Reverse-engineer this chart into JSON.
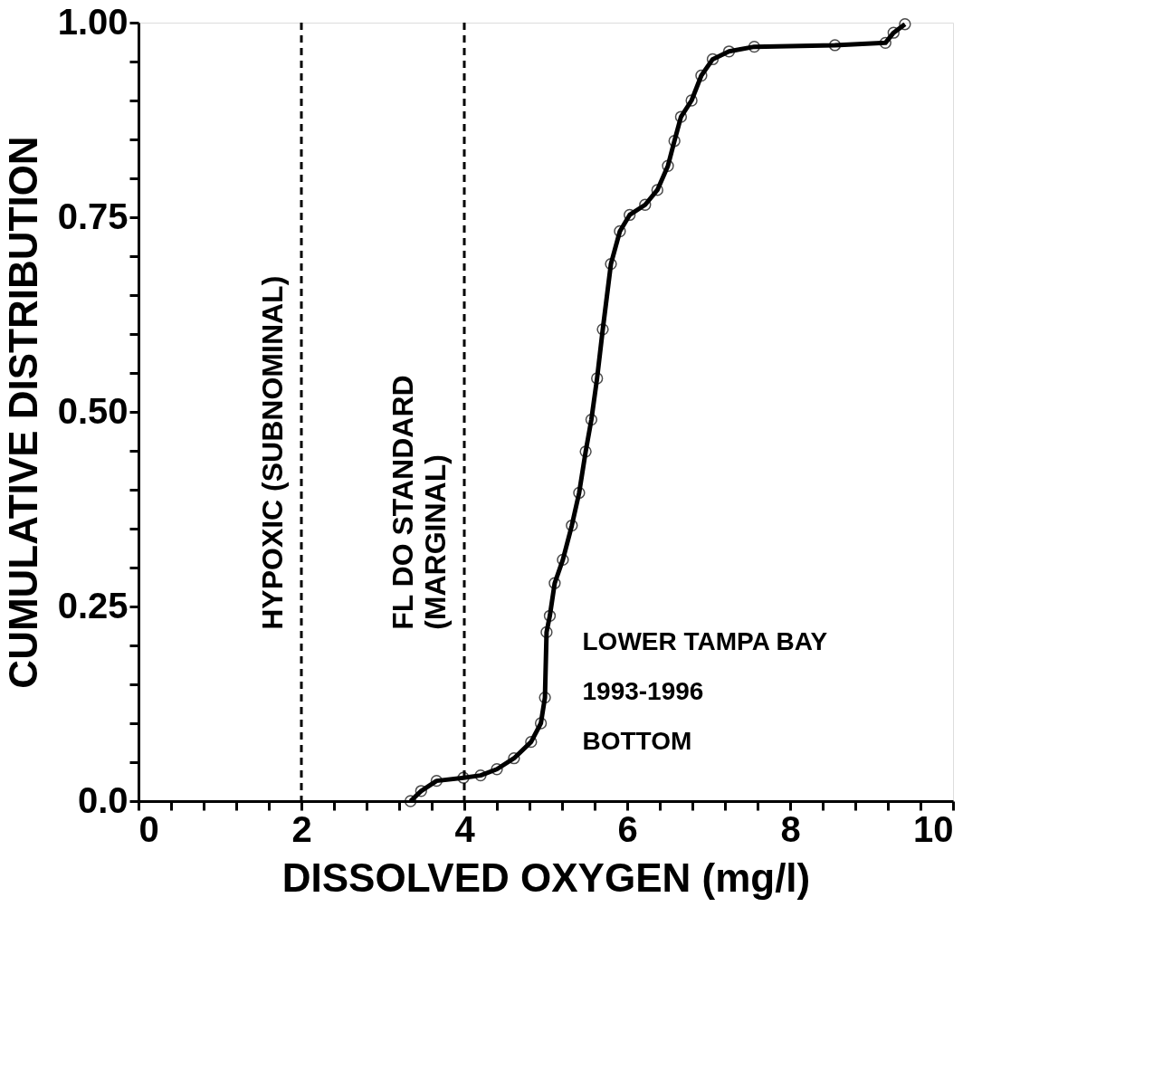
{
  "chart_data": {
    "type": "line",
    "xlabel": "DISSOLVED OXYGEN (mg/l)",
    "ylabel": "CUMULATIVE DISTRIBUTION",
    "xlim": [
      0,
      10
    ],
    "ylim": [
      0,
      1
    ],
    "xticks": [
      0,
      {
        "value": 0.4,
        "label": null
      },
      {
        "value": 0.8,
        "label": null
      },
      {
        "value": 1.2,
        "label": null
      },
      {
        "value": 1.6,
        "label": null
      },
      2,
      {
        "value": 2.4,
        "label": null
      },
      {
        "value": 2.8,
        "label": null
      },
      {
        "value": 3.2,
        "label": null
      },
      {
        "value": 3.6,
        "label": null
      },
      4,
      {
        "value": 4.4,
        "label": null
      },
      {
        "value": 4.8,
        "label": null
      },
      {
        "value": 5.2,
        "label": null
      },
      {
        "value": 5.6,
        "label": null
      },
      6,
      {
        "value": 6.4,
        "label": null
      },
      {
        "value": 6.8,
        "label": null
      },
      {
        "value": 7.2,
        "label": null
      },
      {
        "value": 7.6,
        "label": null
      },
      8,
      {
        "value": 8.4,
        "label": null
      },
      {
        "value": 8.8,
        "label": null
      },
      {
        "value": 9.2,
        "label": null
      },
      {
        "value": 9.6,
        "label": null
      },
      10
    ],
    "yticks": [
      {
        "value": 0,
        "label": "0.0"
      },
      {
        "value": 0.05,
        "label": null
      },
      {
        "value": 0.1,
        "label": null
      },
      {
        "value": 0.15,
        "label": null
      },
      {
        "value": 0.2,
        "label": null
      },
      0.25,
      {
        "value": 0.3,
        "label": null
      },
      {
        "value": 0.35,
        "label": null
      },
      {
        "value": 0.4,
        "label": null
      },
      {
        "value": 0.45,
        "label": null
      },
      {
        "value": 0.5,
        "label": "0.50"
      },
      {
        "value": 0.55,
        "label": null
      },
      {
        "value": 0.6,
        "label": null
      },
      {
        "value": 0.65,
        "label": null
      },
      {
        "value": 0.7,
        "label": null
      },
      0.75,
      {
        "value": 0.8,
        "label": null
      },
      {
        "value": 0.85,
        "label": null
      },
      {
        "value": 0.9,
        "label": null
      },
      {
        "value": 0.95,
        "label": null
      },
      {
        "value": 1,
        "label": "1.00"
      }
    ],
    "grid": false,
    "marker": "circle",
    "line_style": "solid",
    "series": [
      {
        "color": "#000000",
        "x": [
          3.34,
          3.47,
          3.66,
          3.99,
          4.2,
          4.4,
          4.61,
          4.82,
          4.94,
          4.99,
          5.01,
          5.05,
          5.11,
          5.21,
          5.32,
          5.41,
          5.49,
          5.56,
          5.63,
          5.7,
          5.8,
          5.91,
          6.03,
          6.22,
          6.37,
          6.5,
          6.58,
          6.66,
          6.79,
          6.91,
          7.05,
          7.25,
          7.56,
          8.55,
          9.17,
          9.27,
          9.41
        ],
        "values": [
          0.0,
          0.013,
          0.026,
          0.03,
          0.033,
          0.041,
          0.055,
          0.076,
          0.1,
          0.133,
          0.217,
          0.238,
          0.28,
          0.31,
          0.354,
          0.396,
          0.449,
          0.49,
          0.543,
          0.606,
          0.69,
          0.732,
          0.753,
          0.766,
          0.785,
          0.816,
          0.848,
          0.879,
          0.9,
          0.932,
          0.953,
          0.963,
          0.969,
          0.971,
          0.974,
          0.987,
          0.998
        ]
      }
    ],
    "ref_lines": [
      {
        "axis": "x",
        "value": 2,
        "label": "HYPOXIC (SUBNOMINAL)",
        "line_style": "dashed"
      },
      {
        "axis": "x",
        "value": 4,
        "label": "FL DO STANDARD (MARGINAL)",
        "line_style": "dashed"
      }
    ],
    "annotations": [
      "LOWER TAMPA BAY",
      "1993-1996",
      "BOTTOM"
    ]
  }
}
